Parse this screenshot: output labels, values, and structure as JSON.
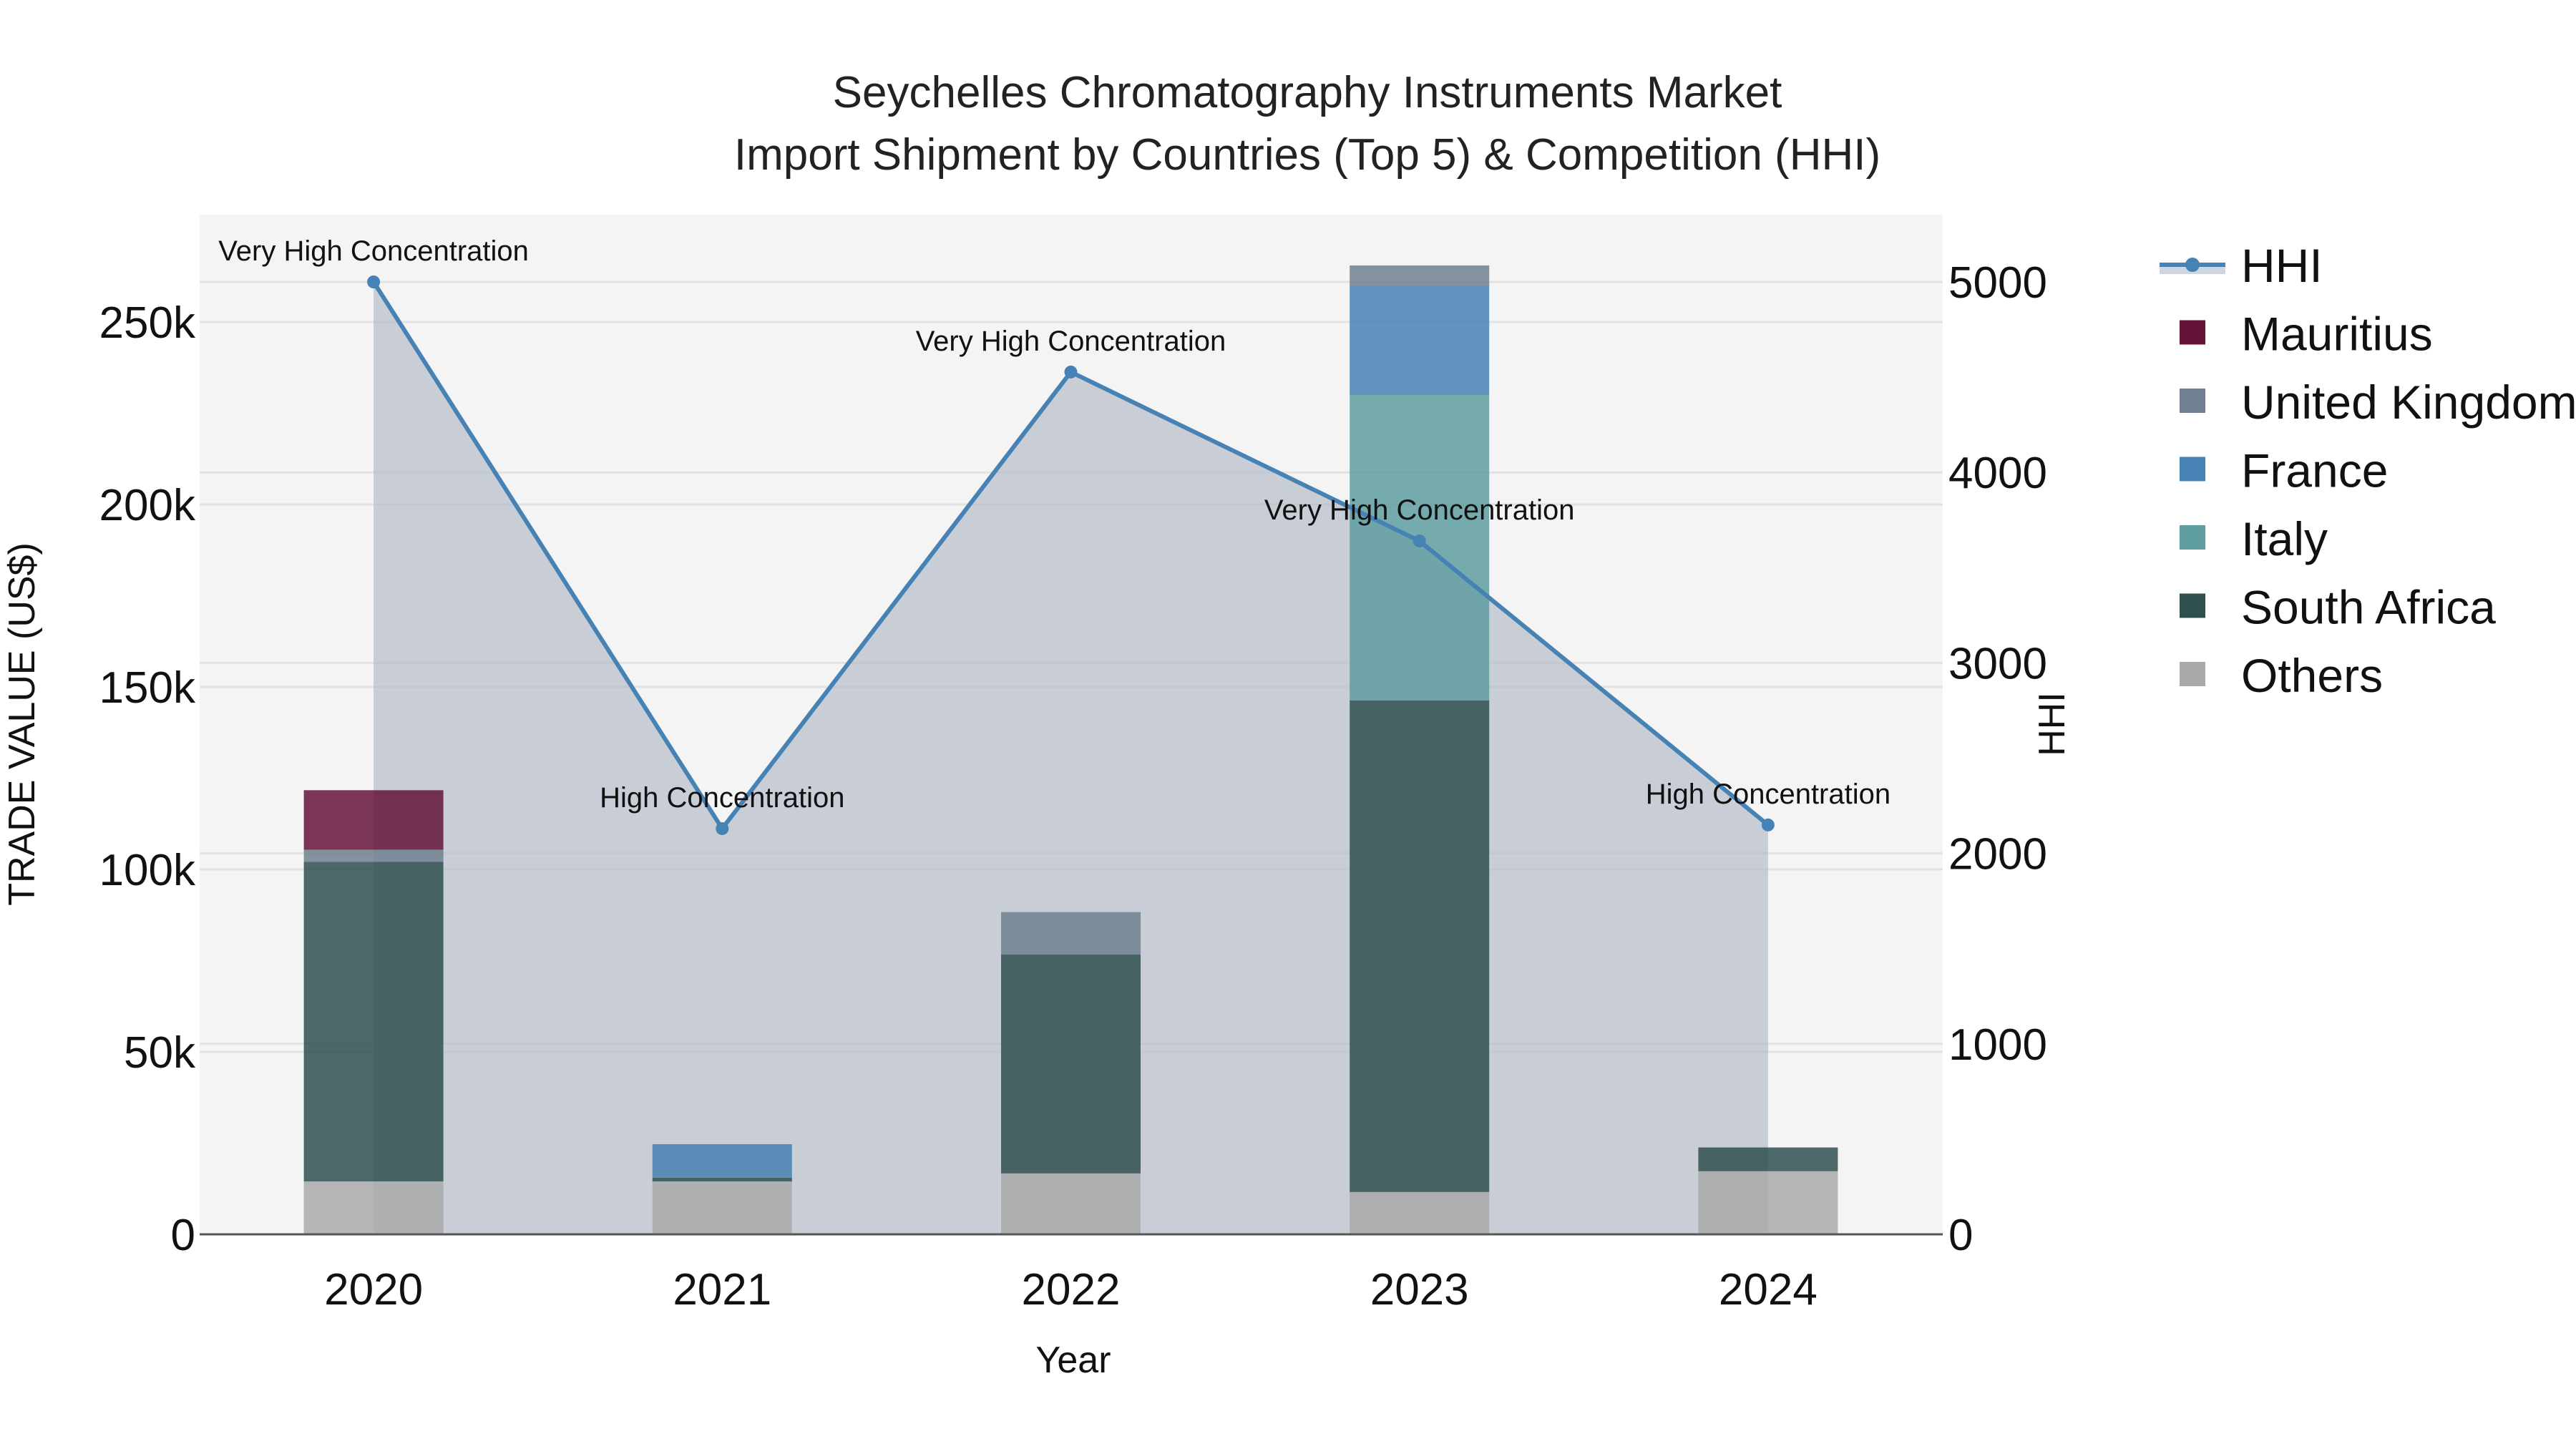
{
  "chart_data": {
    "type": "bar",
    "title": "Seychelles Chromatography Instruments Market",
    "subtitle": "Import Shipment by Countries (Top 5) & Competition (HHI)",
    "xlabel": "Year",
    "ylabel": "TRADE VALUE (US$)",
    "y2label": "HHI",
    "categories": [
      "2020",
      "2021",
      "2022",
      "2023",
      "2024"
    ],
    "ylim": [
      0,
      276000
    ],
    "y2lim": [
      0,
      5400
    ],
    "yticks": [
      {
        "v": 0,
        "label": "0"
      },
      {
        "v": 50000,
        "label": "50k"
      },
      {
        "v": 100000,
        "label": "100k"
      },
      {
        "v": 150000,
        "label": "150k"
      },
      {
        "v": 200000,
        "label": "200k"
      },
      {
        "v": 250000,
        "label": "250k"
      }
    ],
    "y2ticks": [
      {
        "v": 0,
        "label": "0"
      },
      {
        "v": 1000,
        "label": "1000"
      },
      {
        "v": 2000,
        "label": "2000"
      },
      {
        "v": 3000,
        "label": "3000"
      },
      {
        "v": 4000,
        "label": "4000"
      },
      {
        "v": 5000,
        "label": "5000"
      }
    ],
    "grid": true,
    "legend_position": "right",
    "series": [
      {
        "name": "Others",
        "color": "#a9a9a9",
        "values": [
          14500,
          14500,
          16700,
          11600,
          17300
        ]
      },
      {
        "name": "South Africa",
        "color": "#2f4f4f",
        "values": [
          87600,
          1000,
          60000,
          134700,
          6500
        ]
      },
      {
        "name": "Italy",
        "color": "#5f9ea0",
        "values": [
          0,
          0,
          0,
          83700,
          0
        ]
      },
      {
        "name": "France",
        "color": "#4682b4",
        "values": [
          0,
          9200,
          0,
          30000,
          0
        ]
      },
      {
        "name": "United Kingdom",
        "color": "#708090",
        "values": [
          3300,
          0,
          11600,
          5500,
          0
        ]
      },
      {
        "name": "Mauritius",
        "color": "#651438",
        "values": [
          16300,
          0,
          0,
          0,
          0
        ]
      }
    ],
    "hhi": {
      "name": "HHI",
      "color": "#4682b4",
      "fill": "rgba(176,184,198,0.65)",
      "values": [
        5000,
        2130,
        4527,
        3640,
        2149
      ],
      "annotations": [
        "Very High Concentration",
        "High Concentration",
        "Very High Concentration",
        "Very High Concentration",
        "High Concentration"
      ]
    }
  },
  "legend": {
    "items": [
      {
        "label": "HHI",
        "type": "line",
        "color": "#4682b4"
      },
      {
        "label": "Mauritius",
        "type": "box",
        "color": "#651438"
      },
      {
        "label": "United Kingdom",
        "type": "box",
        "color": "#708090"
      },
      {
        "label": "France",
        "type": "box",
        "color": "#4682b4"
      },
      {
        "label": "Italy",
        "type": "box",
        "color": "#5f9ea0"
      },
      {
        "label": "South Africa",
        "type": "box",
        "color": "#2f4f4f"
      },
      {
        "label": "Others",
        "type": "box",
        "color": "#a9a9a9"
      }
    ]
  },
  "colors": {
    "plot_bg": "#f4f4f4",
    "grid": "#e2e2e2",
    "axis_line": "#555555"
  }
}
